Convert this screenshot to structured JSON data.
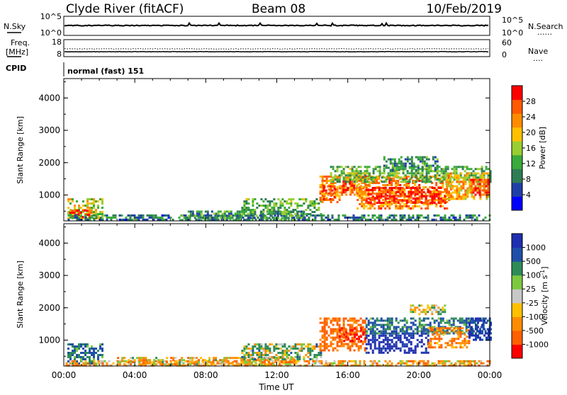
{
  "header": {
    "site": "Clyde River (fitACF)",
    "beam": "Beam 08",
    "date": "10/Feb/2019"
  },
  "strip1": {
    "left_label": "N.Sky",
    "left_top": "10^5",
    "left_bottom": "10^0",
    "right_top": "10^5",
    "right_bottom": "10^0",
    "right_label": "N.Search",
    "right_dots": "......"
  },
  "strip2": {
    "left_label_1": "Freq.",
    "left_label_2": "[MHz]",
    "left_top": "18",
    "left_bottom": "8",
    "right_top": "60",
    "right_bottom": "0",
    "right_label": "Nave",
    "right_dots": "...."
  },
  "cpid": {
    "label": "CPID",
    "value": "normal (fast) 151"
  },
  "colors": {
    "scale": [
      "#0000ff",
      "#1f3fa6",
      "#2e7d55",
      "#3aaa3a",
      "#9acd32",
      "#ffc000",
      "#ff8c00",
      "#ff5a00",
      "#ff0000"
    ],
    "velocity_scale": [
      "#ff0000",
      "#ff6000",
      "#ff8c00",
      "#ffc000",
      "#c8c8c8",
      "#7cc940",
      "#2e8b57",
      "#1f4fa8",
      "#1f2fb0"
    ]
  },
  "chart_data": [
    {
      "type": "heatmap",
      "title": "",
      "xlabel": "",
      "ylabel": "Slant Range [km]",
      "x_ticks": [],
      "y_ticks": [
        "1000",
        "2000",
        "3000",
        "4000"
      ],
      "xlim": [
        0,
        24
      ],
      "ylim": [
        200,
        4600
      ],
      "colorbar": {
        "label": "Power [dB]",
        "ticks": [
          "4",
          "8",
          "12",
          "16",
          "20",
          "24",
          "28"
        ],
        "range": [
          0,
          30
        ]
      },
      "regions": [
        {
          "t0": 0.2,
          "t1": 2.2,
          "r0": 300,
          "r1": 900,
          "v": 16
        },
        {
          "t0": 0.3,
          "t1": 1.5,
          "r0": 320,
          "r1": 550,
          "v": 27
        },
        {
          "t0": 0.1,
          "t1": 24.0,
          "r0": 220,
          "r1": 400,
          "v": 8
        },
        {
          "t0": 6.5,
          "t1": 13.5,
          "r0": 220,
          "r1": 520,
          "v": 10
        },
        {
          "t0": 10.0,
          "t1": 14.5,
          "r0": 400,
          "r1": 900,
          "v": 12
        },
        {
          "t0": 14.4,
          "t1": 15.5,
          "r0": 800,
          "r1": 1600,
          "v": 22
        },
        {
          "t0": 14.6,
          "t1": 15.2,
          "r0": 900,
          "r1": 1300,
          "v": 27
        },
        {
          "t0": 15.5,
          "t1": 17.2,
          "r0": 1000,
          "r1": 1700,
          "v": 21
        },
        {
          "t0": 15.7,
          "t1": 16.3,
          "r0": 1100,
          "r1": 1450,
          "v": 27
        },
        {
          "t0": 16.5,
          "t1": 21.8,
          "r0": 600,
          "r1": 1600,
          "v": 22
        },
        {
          "t0": 17.0,
          "t1": 21.5,
          "r0": 750,
          "r1": 1250,
          "v": 28
        },
        {
          "t0": 15.0,
          "t1": 24.0,
          "r0": 1400,
          "r1": 1900,
          "v": 12
        },
        {
          "t0": 18.0,
          "t1": 21.0,
          "r0": 1800,
          "r1": 2200,
          "v": 9
        },
        {
          "t0": 21.5,
          "t1": 24.0,
          "r0": 900,
          "r1": 1700,
          "v": 20
        },
        {
          "t0": 22.9,
          "t1": 23.9,
          "r0": 1000,
          "r1": 1500,
          "v": 27
        }
      ]
    },
    {
      "type": "heatmap",
      "title": "",
      "xlabel": "Time UT",
      "ylabel": "Slant Range [km]",
      "x_ticks": [
        "00:00",
        "04:00",
        "08:00",
        "12:00",
        "16:00",
        "20:00",
        "00:00"
      ],
      "y_ticks": [
        "1000",
        "2000",
        "3000",
        "4000"
      ],
      "xlim": [
        0,
        24
      ],
      "ylim": [
        200,
        4600
      ],
      "colorbar": {
        "label": "Velocity [m s^-1]",
        "ticks": [
          "1000",
          "500",
          "100",
          "25",
          "-25",
          "-100",
          "-500",
          "-1000"
        ],
        "range": [
          -1200,
          1200
        ]
      },
      "regions": [
        {
          "t0": 0.2,
          "t1": 2.2,
          "r0": 300,
          "r1": 900,
          "v": 300
        },
        {
          "t0": 0.1,
          "t1": 24.0,
          "r0": 220,
          "r1": 380,
          "v": -150
        },
        {
          "t0": 3.0,
          "t1": 13.0,
          "r0": 220,
          "r1": 480,
          "v": -120
        },
        {
          "t0": 10.0,
          "t1": 14.5,
          "r0": 400,
          "r1": 900,
          "v": 80
        },
        {
          "t0": 14.4,
          "t1": 17.0,
          "r0": 700,
          "r1": 1700,
          "v": -400
        },
        {
          "t0": 15.5,
          "t1": 17.0,
          "r0": 1000,
          "r1": 1400,
          "v": -800
        },
        {
          "t0": 17.0,
          "t1": 20.5,
          "r0": 600,
          "r1": 1300,
          "v": 1000
        },
        {
          "t0": 17.0,
          "t1": 24.0,
          "r0": 1200,
          "r1": 1700,
          "v": 300
        },
        {
          "t0": 19.5,
          "t1": 21.5,
          "r0": 1800,
          "r1": 2100,
          "v": 0
        },
        {
          "t0": 20.5,
          "t1": 22.8,
          "r0": 800,
          "r1": 1400,
          "v": -300
        },
        {
          "t0": 22.8,
          "t1": 24.0,
          "r0": 1000,
          "r1": 1700,
          "v": 900
        }
      ]
    }
  ]
}
